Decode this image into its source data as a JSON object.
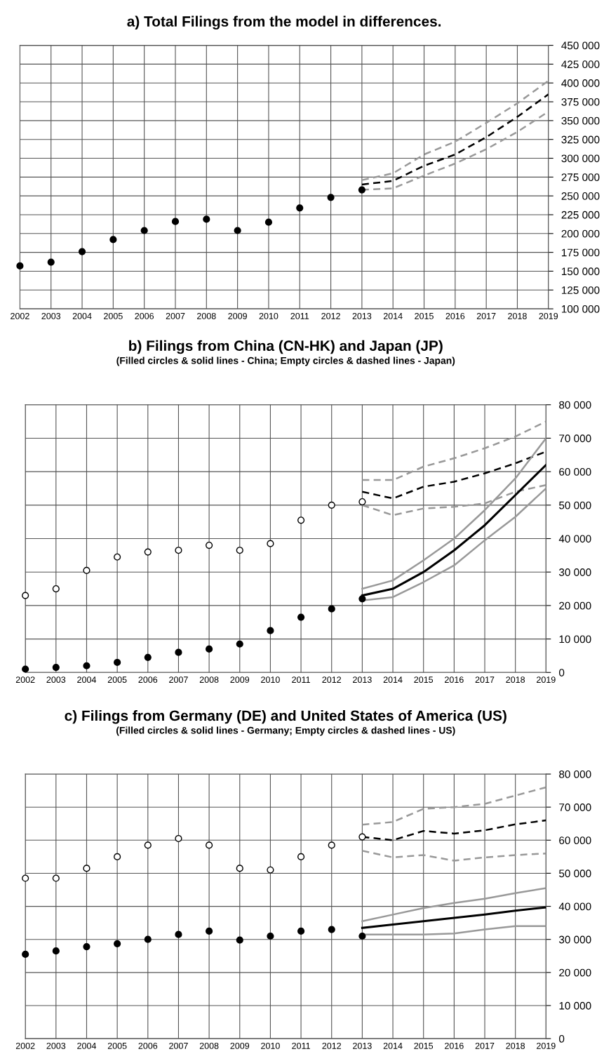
{
  "chart_data": [
    {
      "type": "scatter",
      "title": "a) Total Filings from the model in differences.",
      "grid": true,
      "x": [
        2002,
        2003,
        2004,
        2005,
        2006,
        2007,
        2008,
        2009,
        2010,
        2011,
        2012,
        2013
      ],
      "xlim": [
        2002,
        2019
      ],
      "xticks": [
        2002,
        2003,
        2004,
        2005,
        2006,
        2007,
        2008,
        2009,
        2010,
        2011,
        2012,
        2013,
        2014,
        2015,
        2016,
        2017,
        2018,
        2019
      ],
      "ylim": [
        100000,
        450000
      ],
      "yticks": [
        {
          "value": 100000,
          "label": "100 000"
        },
        {
          "value": 125000,
          "label": "125 000"
        },
        {
          "value": 150000,
          "label": "150 000"
        },
        {
          "value": 175000,
          "label": "175 000"
        },
        {
          "value": 200000,
          "label": "200 000"
        },
        {
          "value": 225000,
          "label": "225 000"
        },
        {
          "value": 250000,
          "label": "250 000"
        },
        {
          "value": 275000,
          "label": "275 000"
        },
        {
          "value": 300000,
          "label": "300 000"
        },
        {
          "value": 325000,
          "label": "325 000"
        },
        {
          "value": 350000,
          "label": "350 000"
        },
        {
          "value": 375000,
          "label": "375 000"
        },
        {
          "value": 400000,
          "label": "400 000"
        },
        {
          "value": 425000,
          "label": "425 000"
        },
        {
          "value": 450000,
          "label": "450 000"
        }
      ],
      "series": [
        {
          "color": "#000000",
          "marker": "circle",
          "values": [
            157000,
            162000,
            176000,
            192000,
            204000,
            216000,
            219000,
            204000,
            215000,
            234000,
            248000,
            258000
          ]
        },
        {
          "type": "line",
          "line_style": "dashed",
          "color": "#999999",
          "x": [
            2013,
            2014,
            2015,
            2016,
            2017,
            2018,
            2019
          ],
          "values": [
            271000,
            280000,
            305000,
            322000,
            347000,
            373000,
            403000
          ]
        },
        {
          "type": "line",
          "line_style": "dashed",
          "color": "#999999",
          "x": [
            2013,
            2014,
            2015,
            2016,
            2017,
            2018,
            2019
          ],
          "values": [
            258000,
            260000,
            277000,
            293000,
            312000,
            335000,
            362000
          ]
        },
        {
          "type": "line",
          "line_style": "dashed",
          "color": "#000000",
          "x": [
            2013,
            2014,
            2015,
            2016,
            2017,
            2018,
            2019
          ],
          "values": [
            265000,
            270000,
            290000,
            305000,
            328000,
            355000,
            385000
          ]
        }
      ]
    },
    {
      "type": "scatter",
      "title": "b) Filings from China (CN-HK) and Japan (JP)",
      "subtitle": "(Filled circles & solid lines - China; Empty circles & dashed lines - Japan)",
      "grid": true,
      "x": [
        2002,
        2003,
        2004,
        2005,
        2006,
        2007,
        2008,
        2009,
        2010,
        2011,
        2012,
        2013
      ],
      "xlim": [
        2002,
        2019
      ],
      "xticks": [
        2002,
        2003,
        2004,
        2005,
        2006,
        2007,
        2008,
        2009,
        2010,
        2011,
        2012,
        2013,
        2014,
        2015,
        2016,
        2017,
        2018,
        2019
      ],
      "ylim": [
        0,
        80000
      ],
      "yticks": [
        0,
        {
          "value": 10000,
          "label": "10 000"
        },
        {
          "value": 20000,
          "label": "20 000"
        },
        {
          "value": 30000,
          "label": "30 000"
        },
        {
          "value": 40000,
          "label": "40 000"
        },
        {
          "value": 50000,
          "label": "50 000"
        },
        {
          "value": 60000,
          "label": "60 000"
        },
        {
          "value": 70000,
          "label": "70 000"
        },
        {
          "value": 80000,
          "label": "80 000"
        }
      ],
      "series": [
        {
          "color": "#000000",
          "marker": "circle",
          "values": [
            1000,
            1500,
            2000,
            3000,
            4500,
            6000,
            7000,
            8500,
            12500,
            16500,
            19000,
            22000
          ]
        },
        {
          "color": "#ffffff",
          "marker": "circle",
          "values": [
            23000,
            25000,
            30500,
            34500,
            36000,
            36500,
            38000,
            36500,
            38500,
            45500,
            50000,
            51000
          ]
        },
        {
          "type": "line",
          "line_style": "dashed",
          "color": "#999999",
          "x": [
            2013,
            2014,
            2015,
            2016,
            2017,
            2018,
            2019
          ],
          "values": [
            57500,
            57500,
            61500,
            64000,
            67000,
            70500,
            75000
          ]
        },
        {
          "type": "line",
          "line_style": "dashed",
          "color": "#999999",
          "x": [
            2013,
            2014,
            2015,
            2016,
            2017,
            2018,
            2019
          ],
          "values": [
            50000,
            47000,
            49000,
            49500,
            50500,
            54000,
            56000
          ]
        },
        {
          "type": "line",
          "line_style": "dashed",
          "color": "#000000",
          "x": [
            2013,
            2014,
            2015,
            2016,
            2017,
            2018,
            2019
          ],
          "values": [
            54000,
            52000,
            55500,
            57000,
            59500,
            62500,
            66000
          ]
        },
        {
          "type": "line",
          "line_style": "solid",
          "color": "#999999",
          "x": [
            2013,
            2014,
            2015,
            2016,
            2017,
            2018,
            2019
          ],
          "values": [
            25000,
            27500,
            33500,
            40000,
            48500,
            58000,
            70000
          ]
        },
        {
          "type": "line",
          "line_style": "solid",
          "color": "#999999",
          "x": [
            2013,
            2014,
            2015,
            2016,
            2017,
            2018,
            2019
          ],
          "values": [
            21500,
            22500,
            27000,
            32000,
            39500,
            46500,
            55000
          ]
        },
        {
          "type": "line",
          "line_style": "solid",
          "color": "#000000",
          "x": [
            2013,
            2014,
            2015,
            2016,
            2017,
            2018,
            2019
          ],
          "values": [
            23000,
            25000,
            30000,
            36500,
            44000,
            53000,
            62000
          ]
        }
      ]
    },
    {
      "type": "scatter",
      "title": "c) Filings from Germany (DE) and United States of America (US)",
      "subtitle": "(Filled circles & solid lines - Germany; Empty circles & dashed lines - US)",
      "grid": true,
      "x": [
        2002,
        2003,
        2004,
        2005,
        2006,
        2007,
        2008,
        2009,
        2010,
        2011,
        2012,
        2013
      ],
      "xlim": [
        2002,
        2019
      ],
      "xticks": [
        2002,
        2003,
        2004,
        2005,
        2006,
        2007,
        2008,
        2009,
        2010,
        2011,
        2012,
        2013,
        2014,
        2015,
        2016,
        2017,
        2018,
        2019
      ],
      "ylim": [
        0,
        80000
      ],
      "yticks": [
        0,
        {
          "value": 10000,
          "label": "10 000"
        },
        {
          "value": 20000,
          "label": "20 000"
        },
        {
          "value": 30000,
          "label": "30 000"
        },
        {
          "value": 40000,
          "label": "40 000"
        },
        {
          "value": 50000,
          "label": "50 000"
        },
        {
          "value": 60000,
          "label": "60 000"
        },
        {
          "value": 70000,
          "label": "70 000"
        },
        {
          "value": 80000,
          "label": "80 000"
        }
      ],
      "series": [
        {
          "color": "#000000",
          "marker": "circle",
          "values": [
            25500,
            26500,
            27800,
            28700,
            30000,
            31500,
            32500,
            29800,
            31000,
            32500,
            33000,
            31000
          ]
        },
        {
          "color": "#ffffff",
          "marker": "circle",
          "values": [
            48500,
            48500,
            51500,
            55000,
            58500,
            60500,
            58500,
            51500,
            51000,
            55000,
            58500,
            61000
          ]
        },
        {
          "type": "line",
          "line_style": "dashed",
          "color": "#999999",
          "x": [
            2013,
            2014,
            2015,
            2016,
            2017,
            2018,
            2019
          ],
          "values": [
            64700,
            65500,
            69500,
            70000,
            71000,
            73500,
            76000
          ]
        },
        {
          "type": "line",
          "line_style": "dashed",
          "color": "#999999",
          "x": [
            2013,
            2014,
            2015,
            2016,
            2017,
            2018,
            2019
          ],
          "values": [
            56800,
            54800,
            55500,
            53800,
            54800,
            55500,
            56000
          ]
        },
        {
          "type": "line",
          "line_style": "dashed",
          "color": "#000000",
          "x": [
            2013,
            2014,
            2015,
            2016,
            2017,
            2018,
            2019
          ],
          "values": [
            61000,
            60000,
            62800,
            62000,
            63000,
            64800,
            66000
          ]
        },
        {
          "type": "line",
          "line_style": "solid",
          "color": "#999999",
          "x": [
            2013,
            2014,
            2015,
            2016,
            2017,
            2018,
            2019
          ],
          "values": [
            35500,
            37500,
            39500,
            41000,
            42300,
            44000,
            45500
          ]
        },
        {
          "type": "line",
          "line_style": "solid",
          "color": "#999999",
          "x": [
            2013,
            2014,
            2015,
            2016,
            2017,
            2018,
            2019
          ],
          "values": [
            31500,
            31500,
            31500,
            31800,
            33000,
            34000,
            34000
          ]
        },
        {
          "type": "line",
          "line_style": "solid",
          "color": "#000000",
          "x": [
            2013,
            2014,
            2015,
            2016,
            2017,
            2018,
            2019
          ],
          "values": [
            33500,
            34500,
            35500,
            36500,
            37500,
            38700,
            39700
          ]
        }
      ]
    }
  ]
}
